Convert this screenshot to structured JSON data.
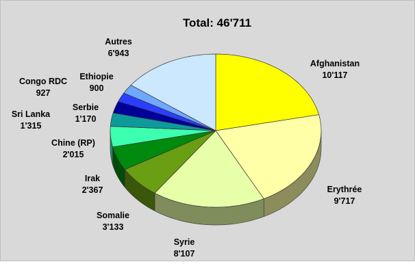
{
  "chart_data": {
    "type": "pie",
    "title": "Total: 46'711",
    "slices": [
      {
        "name": "Afghanistan",
        "value": 10117,
        "value_label": "10'117",
        "color": "#ffff00"
      },
      {
        "name": "Erythrée",
        "value": 9717,
        "value_label": "9'717",
        "color": "#ffffa8"
      },
      {
        "name": "Syrie",
        "value": 8107,
        "value_label": "8'107",
        "color": "#e6ffa8"
      },
      {
        "name": "Somalie",
        "value": 3133,
        "value_label": "3'133",
        "color": "#6a9e13"
      },
      {
        "name": "Irak",
        "value": 2367,
        "value_label": "2'367",
        "color": "#008a0e"
      },
      {
        "name": "Chine (RP)",
        "value": 2015,
        "value_label": "2'015",
        "color": "#3dffb0"
      },
      {
        "name": "Sri Lanka",
        "value": 1315,
        "value_label": "1'315",
        "color": "#0e9a9a"
      },
      {
        "name": "Serbie",
        "value": 1170,
        "value_label": "1'170",
        "color": "#000099"
      },
      {
        "name": "Ethiopie",
        "value": 900,
        "value_label": "900",
        "color": "#2b3dff"
      },
      {
        "name": "Congo RDC",
        "value": 927,
        "value_label": "927",
        "color": "#6fa8ff"
      },
      {
        "name": "Autres",
        "value": 6943,
        "value_label": "6'943",
        "color": "#cce8ff"
      }
    ]
  }
}
